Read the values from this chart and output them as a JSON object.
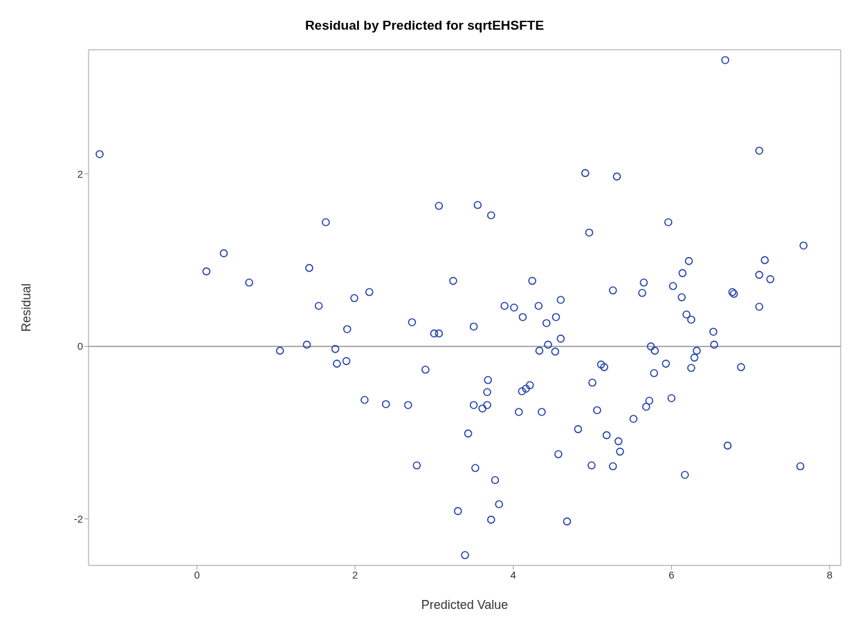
{
  "chart_data": {
    "type": "scatter",
    "title": "Residual by Predicted for sqrtEHSFTE",
    "xlabel": "Predicted Value",
    "ylabel": "Residual",
    "marker": "circle",
    "grid": false,
    "xlim": [
      -1.37,
      8.14
    ],
    "xticks": [
      0,
      2,
      4,
      6,
      8
    ],
    "ylim": [
      -2.54,
      3.44
    ],
    "yticks": [
      -2,
      0,
      2
    ],
    "ref_lines": [
      {
        "axis": "y",
        "value": 0,
        "color": "#909090"
      }
    ],
    "series": [
      {
        "color": "#1f3fa8",
        "x": [
          -1.23,
          0.12,
          0.34,
          0.66,
          1.05,
          1.39,
          1.42,
          1.54,
          1.63,
          1.75,
          1.77,
          1.89,
          1.9,
          1.99,
          2.18,
          2.12,
          2.39,
          2.67,
          2.72,
          2.78,
          2.89,
          3.0,
          3.06,
          3.06,
          3.24,
          3.3,
          3.39,
          3.43,
          3.5,
          3.5,
          3.52,
          3.55,
          3.61,
          3.67,
          3.67,
          3.68,
          3.72,
          3.72,
          3.77,
          3.82,
          3.89,
          4.01,
          4.07,
          4.11,
          4.12,
          4.16,
          4.21,
          4.24,
          4.32,
          4.33,
          4.36,
          4.42,
          4.44,
          4.53,
          4.54,
          4.57,
          4.6,
          4.6,
          4.68,
          4.82,
          4.91,
          4.96,
          4.99,
          5.0,
          5.06,
          5.11,
          5.15,
          5.18,
          5.26,
          5.26,
          5.31,
          5.33,
          5.35,
          5.52,
          5.63,
          5.65,
          5.68,
          5.72,
          5.74,
          5.79,
          5.78,
          5.93,
          5.96,
          6.0,
          6.02,
          6.13,
          6.14,
          6.17,
          6.19,
          6.22,
          6.25,
          6.25,
          6.29,
          6.32,
          6.53,
          6.54,
          6.68,
          6.71,
          6.77,
          6.79,
          6.88,
          7.11,
          7.11,
          7.11,
          7.18,
          7.25,
          7.63,
          7.67
        ],
        "values": [
          2.23,
          0.87,
          1.08,
          0.74,
          -0.05,
          0.02,
          0.91,
          0.47,
          1.44,
          -0.03,
          -0.2,
          -0.17,
          0.2,
          0.56,
          0.63,
          -0.62,
          -0.67,
          -0.68,
          0.28,
          -1.38,
          -0.27,
          0.15,
          0.15,
          1.63,
          0.76,
          -1.91,
          -2.42,
          -1.01,
          0.23,
          -0.68,
          -1.41,
          1.64,
          -0.72,
          -0.68,
          -0.53,
          -0.39,
          1.52,
          -2.01,
          -1.55,
          -1.83,
          0.47,
          0.45,
          -0.76,
          -0.52,
          0.34,
          -0.49,
          -0.45,
          0.76,
          0.47,
          -0.05,
          -0.76,
          0.27,
          0.02,
          -0.06,
          0.34,
          -1.25,
          0.54,
          0.09,
          -2.03,
          -0.96,
          2.01,
          1.32,
          -1.38,
          -0.42,
          -0.74,
          -0.21,
          -0.24,
          -1.03,
          -1.39,
          0.65,
          1.97,
          -1.1,
          -1.22,
          -0.84,
          0.62,
          0.74,
          -0.7,
          -0.63,
          0.0,
          -0.05,
          -0.31,
          -0.2,
          1.44,
          -0.6,
          0.7,
          0.57,
          0.85,
          -1.49,
          0.37,
          0.99,
          -0.25,
          0.31,
          -0.13,
          -0.05,
          0.17,
          0.02,
          3.32,
          -1.15,
          0.63,
          0.61,
          -0.24,
          2.27,
          0.83,
          0.46,
          1.0,
          0.78,
          -1.39,
          1.17
        ]
      }
    ]
  }
}
